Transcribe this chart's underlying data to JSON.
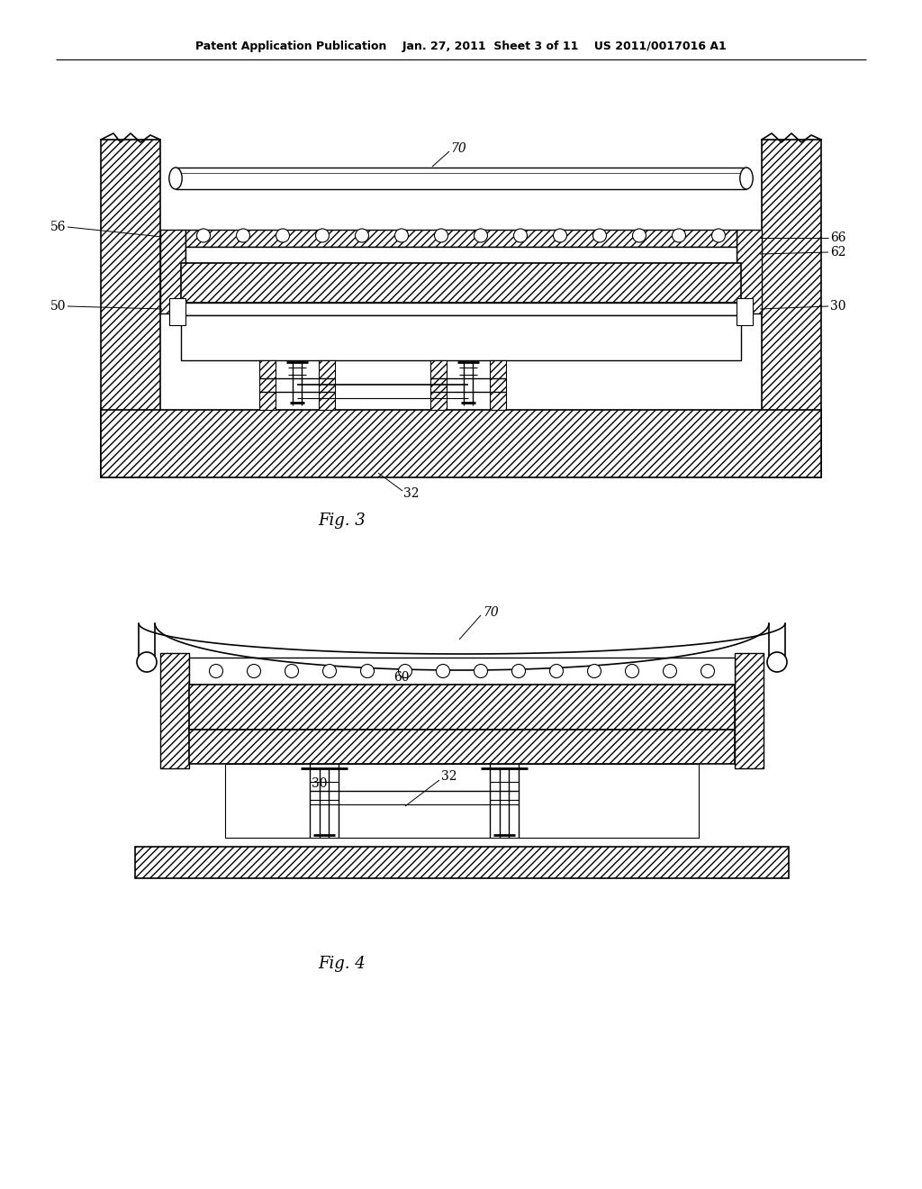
{
  "header": "Patent Application Publication    Jan. 27, 2011  Sheet 3 of 11    US 2011/0017016 A1",
  "fig3_caption": "Fig. 3",
  "fig4_caption": "Fig. 4",
  "bg": "#ffffff",
  "black": "#000000"
}
